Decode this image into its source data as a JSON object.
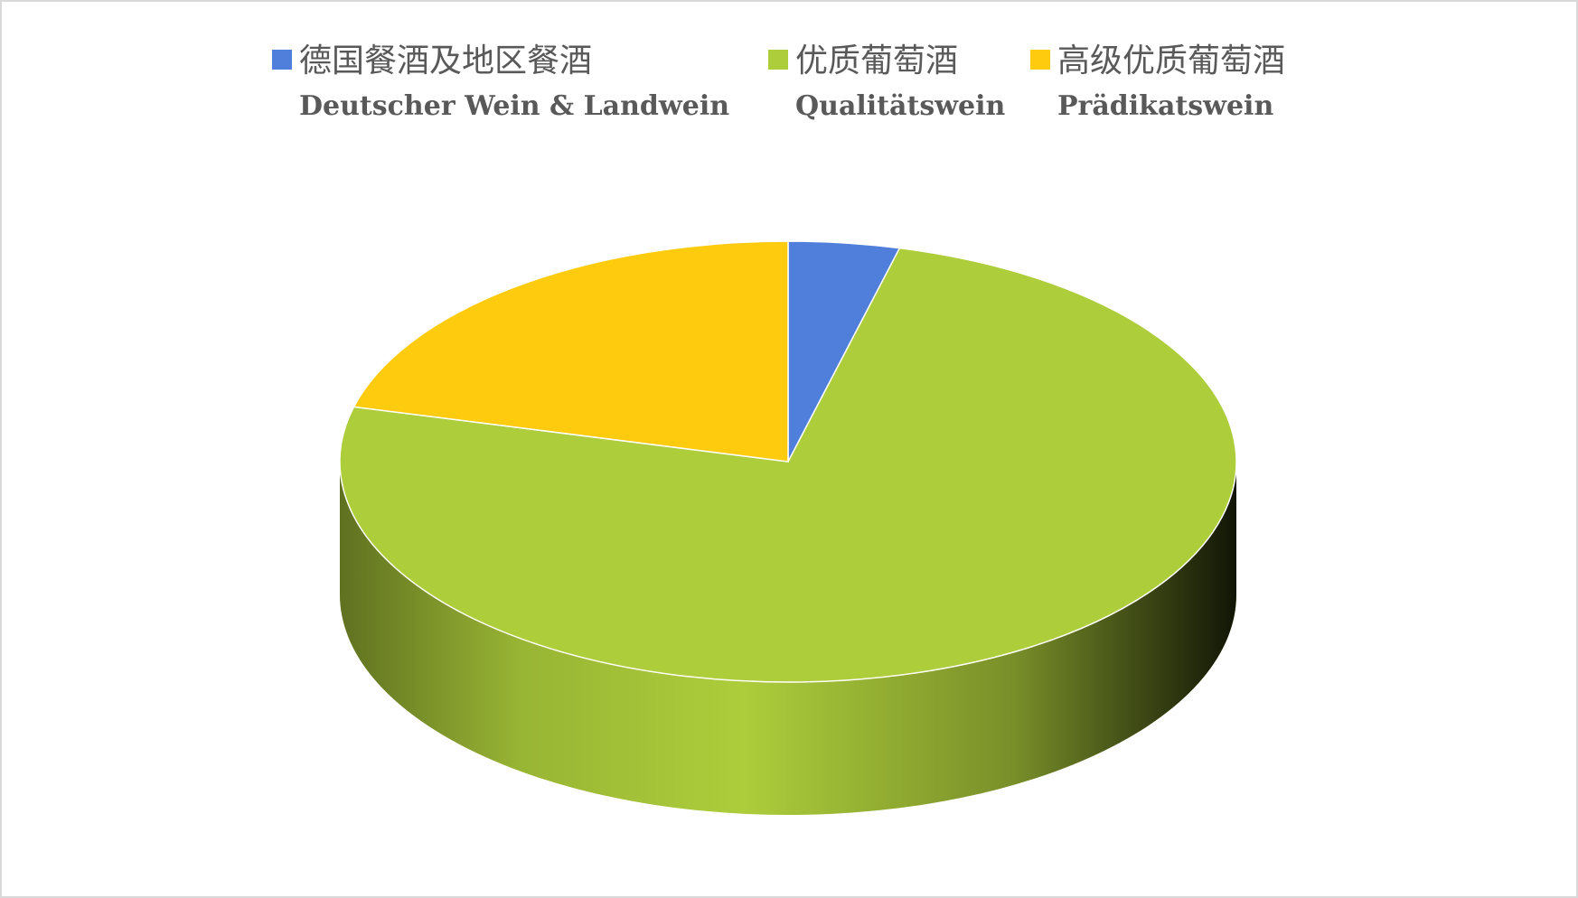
{
  "chart_data": {
    "type": "pie3d",
    "categories": [
      "德国餐酒及地区餐酒",
      "优质葡萄酒",
      "高级优质葡萄酒"
    ],
    "categories_de": [
      "Deutscher Wein & Landwein",
      "Qualitätswein",
      "Prädikatswein"
    ],
    "values": [
      4,
      75,
      21
    ],
    "colors": [
      "#4f7edb",
      "#adcd3b",
      "#fecb0e"
    ],
    "legend": "top"
  }
}
